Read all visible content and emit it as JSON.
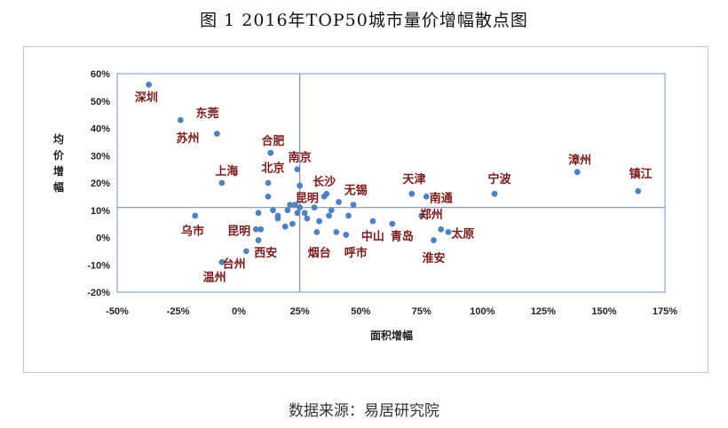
{
  "figure": {
    "title": "图 1 2016年TOP50城市量价增幅散点图",
    "source": "数据来源：易居研究院"
  },
  "chart_data": {
    "type": "scatter",
    "title": "图 1 2016年TOP50城市量价增幅散点图",
    "xlabel": "面积增幅",
    "ylabel": "均价增幅",
    "xlim": [
      -0.5,
      1.75
    ],
    "ylim": [
      -0.2,
      0.6
    ],
    "xticks": [
      "-50%",
      "-25%",
      "0%",
      "25%",
      "50%",
      "75%",
      "100%",
      "125%",
      "150%",
      "175%"
    ],
    "yticks": [
      "60%",
      "50%",
      "40%",
      "30%",
      "20%",
      "10%",
      "0%",
      "-10%",
      "-20%"
    ],
    "xticks_values": [
      -0.5,
      -0.25,
      0,
      0.25,
      0.5,
      0.75,
      1.0,
      1.25,
      1.5,
      1.75
    ],
    "yticks_values": [
      0.6,
      0.5,
      0.4,
      0.3,
      0.2,
      0.1,
      0,
      -0.1,
      -0.2
    ],
    "reference_lines": {
      "x": 0.25,
      "y": 0.11
    },
    "grid": false,
    "marker_color": "#4f81bd",
    "label_color": "#7a1a1a",
    "points": [
      {
        "x": -0.37,
        "y": 0.56
      },
      {
        "x": -0.24,
        "y": 0.43
      },
      {
        "x": -0.09,
        "y": 0.38
      },
      {
        "x": -0.07,
        "y": 0.2
      },
      {
        "x": -0.18,
        "y": 0.08
      },
      {
        "x": -0.07,
        "y": -0.09
      },
      {
        "x": 0.03,
        "y": -0.05
      },
      {
        "x": 0.07,
        "y": 0.03
      },
      {
        "x": 0.09,
        "y": 0.03
      },
      {
        "x": 0.08,
        "y": -0.01
      },
      {
        "x": 0.08,
        "y": 0.09
      },
      {
        "x": 0.12,
        "y": 0.2
      },
      {
        "x": 0.12,
        "y": 0.15
      },
      {
        "x": 0.13,
        "y": 0.31
      },
      {
        "x": 0.14,
        "y": 0.1
      },
      {
        "x": 0.16,
        "y": 0.07
      },
      {
        "x": 0.16,
        "y": 0.08
      },
      {
        "x": 0.19,
        "y": 0.04
      },
      {
        "x": 0.2,
        "y": 0.1
      },
      {
        "x": 0.21,
        "y": 0.12
      },
      {
        "x": 0.22,
        "y": 0.05
      },
      {
        "x": 0.23,
        "y": 0.12
      },
      {
        "x": 0.24,
        "y": 0.09
      },
      {
        "x": 0.24,
        "y": 0.25
      },
      {
        "x": 0.25,
        "y": 0.19
      },
      {
        "x": 0.25,
        "y": 0.11
      },
      {
        "x": 0.27,
        "y": 0.09
      },
      {
        "x": 0.28,
        "y": 0.07
      },
      {
        "x": 0.31,
        "y": 0.11
      },
      {
        "x": 0.32,
        "y": 0.02
      },
      {
        "x": 0.33,
        "y": 0.06
      },
      {
        "x": 0.35,
        "y": 0.15
      },
      {
        "x": 0.36,
        "y": 0.16
      },
      {
        "x": 0.37,
        "y": 0.08
      },
      {
        "x": 0.38,
        "y": 0.1
      },
      {
        "x": 0.4,
        "y": 0.02
      },
      {
        "x": 0.41,
        "y": 0.13
      },
      {
        "x": 0.44,
        "y": 0.01
      },
      {
        "x": 0.45,
        "y": 0.08
      },
      {
        "x": 0.47,
        "y": 0.12
      },
      {
        "x": 0.55,
        "y": 0.06
      },
      {
        "x": 0.63,
        "y": 0.05
      },
      {
        "x": 0.71,
        "y": 0.16
      },
      {
        "x": 0.75,
        "y": 0.08
      },
      {
        "x": 0.77,
        "y": 0.15
      },
      {
        "x": 0.8,
        "y": -0.01
      },
      {
        "x": 0.83,
        "y": 0.03
      },
      {
        "x": 0.86,
        "y": 0.02
      },
      {
        "x": 1.05,
        "y": 0.16
      },
      {
        "x": 1.39,
        "y": 0.24
      },
      {
        "x": 1.64,
        "y": 0.17
      }
    ],
    "annotations": [
      {
        "text": "深圳",
        "x": -0.38,
        "y": 0.5
      },
      {
        "text": "东莞",
        "x": -0.13,
        "y": 0.44
      },
      {
        "text": "苏州",
        "x": -0.21,
        "y": 0.35
      },
      {
        "text": "合肥",
        "x": 0.14,
        "y": 0.34
      },
      {
        "text": "南京",
        "x": 0.25,
        "y": 0.28
      },
      {
        "text": "北京",
        "x": 0.14,
        "y": 0.24
      },
      {
        "text": "上海",
        "x": -0.05,
        "y": 0.23
      },
      {
        "text": "长沙",
        "x": 0.35,
        "y": 0.19
      },
      {
        "text": "无锡",
        "x": 0.48,
        "y": 0.16
      },
      {
        "text": "昆明",
        "x": 0.28,
        "y": 0.13
      },
      {
        "text": "天津",
        "x": 0.72,
        "y": 0.2
      },
      {
        "text": "南通",
        "x": 0.83,
        "y": 0.13
      },
      {
        "text": "郑州",
        "x": 0.79,
        "y": 0.07
      },
      {
        "text": "宁波",
        "x": 1.07,
        "y": 0.2
      },
      {
        "text": "漳州",
        "x": 1.4,
        "y": 0.27
      },
      {
        "text": "镇江",
        "x": 1.65,
        "y": 0.22
      },
      {
        "text": "乌市",
        "x": -0.19,
        "y": 0.01
      },
      {
        "text": "昆明",
        "x": 0.0,
        "y": 0.01
      },
      {
        "text": "中山",
        "x": 0.55,
        "y": -0.01
      },
      {
        "text": "青岛",
        "x": 0.67,
        "y": -0.01
      },
      {
        "text": "太原",
        "x": 0.92,
        "y": 0.0
      },
      {
        "text": "西安",
        "x": 0.11,
        "y": -0.07
      },
      {
        "text": "台州",
        "x": -0.02,
        "y": -0.11
      },
      {
        "text": "烟台",
        "x": 0.33,
        "y": -0.07
      },
      {
        "text": "呼市",
        "x": 0.48,
        "y": -0.07
      },
      {
        "text": "淮安",
        "x": 0.8,
        "y": -0.09
      },
      {
        "text": "温州",
        "x": -0.1,
        "y": -0.16
      }
    ]
  }
}
